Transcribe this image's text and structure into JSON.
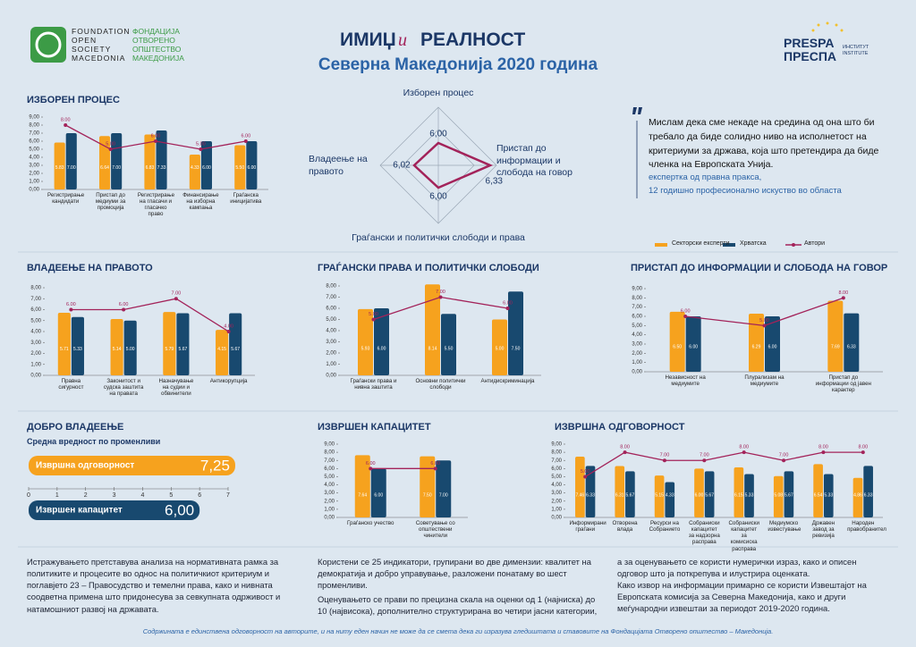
{
  "logo_left": {
    "en": [
      "FOUNDATION",
      "OPEN",
      "SOCIETY",
      "MACEDONIA"
    ],
    "mk": [
      "ФОНДАЦИЈА",
      "ОТВОРЕНО",
      "ОПШТЕСТВО",
      "МАКЕДОНИЈА"
    ]
  },
  "header": {
    "title_a": "ИМИЏ",
    "title_and": "и",
    "title_b": "РЕАЛНОСТ",
    "subtitle": "Северна Македонија 2020 година"
  },
  "logo_right": {
    "en": "PRESPA",
    "mk": "ПРЕСПА",
    "inst_mk": "ИНСТИТУТ",
    "inst_en": "INSTITUTE"
  },
  "quote": {
    "text": "Мислам дека сме некаде на средина од она што би требало да биде солидно ниво на исполнетост на критериуми за држава, која што претендира да биде членка на Европската Унија.",
    "author": "експертка од правна пракса,",
    "author_detail": "12 годишно професионално искуство во областа"
  },
  "legend": {
    "items": [
      "Секторски експерти",
      "Хрватска",
      "Автори"
    ]
  },
  "chart_data": [
    {
      "type": "combo",
      "title": "ИЗБОРЕН ПРОЦЕС",
      "categories": [
        "Регистрирање кандидати",
        "Пристап до медиуми за промоција",
        "Регистрирање на гласачи и гласачко право",
        "Финансирање на изборна кампања",
        "Граѓанска иницијатива"
      ],
      "series": [
        {
          "kind": "bar",
          "color": "#f6a21e",
          "values": [
            5.83,
            6.64,
            6.83,
            4.33,
            5.5
          ],
          "value_labels": [
            "5.83",
            "6.64",
            "6.83",
            "4.33",
            "5.50"
          ]
        },
        {
          "kind": "bar",
          "color": "#18496f",
          "values": [
            7,
            7,
            7.33,
            6,
            6
          ],
          "value_labels": [
            "7.00",
            "7.00",
            "7.33",
            "6.00",
            "6.00"
          ]
        },
        {
          "kind": "line",
          "color": "#a3235a",
          "values": [
            8,
            5,
            6,
            5,
            6
          ],
          "value_labels": [
            "8.00",
            "5.00",
            "6.00",
            "5.00",
            "6.00"
          ]
        }
      ],
      "ylim": [
        0,
        9
      ],
      "yticks": [
        {
          "value": 0,
          "label": "0,00"
        },
        {
          "value": 1,
          "label": "1,00"
        },
        {
          "value": 2,
          "label": "2,00"
        },
        {
          "value": 3,
          "label": "3,00"
        },
        {
          "value": 4,
          "label": "4,00"
        },
        {
          "value": 5,
          "label": "5,00"
        },
        {
          "value": 6,
          "label": "6,00"
        },
        {
          "value": 7,
          "label": "7,00"
        },
        {
          "value": 8,
          "label": "8,00"
        },
        {
          "value": 9,
          "label": "9,00"
        }
      ]
    },
    {
      "type": "radar",
      "categories": [
        "Изборен процес",
        "Пристап до информации и слобода на говор",
        "Граѓански и политички слободи и права",
        "Владеење на правото"
      ],
      "values": [
        6,
        6.33,
        6,
        6.02
      ],
      "value_labels": [
        "6,00",
        "6,33",
        "6,00",
        "6,02"
      ],
      "color": "#a3235a",
      "rlim": [
        5.75,
        6.4
      ],
      "rticks": [
        6.15,
        6.4
      ]
    },
    {
      "type": "combo",
      "title": "ВЛАДЕЕЊЕ НА ПРАВОТО",
      "categories": [
        "Правна сигурност",
        "Законитост и судска заштита на правата",
        "Назначување на судии и обвинители",
        "Антикорупција"
      ],
      "series": [
        {
          "kind": "bar",
          "color": "#f6a21e",
          "values": [
            5.71,
            5.14,
            5.79,
            4.15
          ],
          "value_labels": [
            "5.71",
            "5.14",
            "5.79",
            "4.15"
          ]
        },
        {
          "kind": "bar",
          "color": "#18496f",
          "values": [
            5.33,
            5,
            5.67,
            5.67
          ],
          "value_labels": [
            "5.33",
            "5.00",
            "5.67",
            "5.67"
          ]
        },
        {
          "kind": "line",
          "color": "#a3235a",
          "values": [
            6,
            6,
            7,
            4
          ],
          "value_labels": [
            "6.00",
            "6.00",
            "7.00",
            "4.00"
          ]
        }
      ],
      "ylim": [
        0,
        8
      ],
      "yticks": [
        {
          "value": 0,
          "label": "0,00"
        },
        {
          "value": 1,
          "label": "1,00"
        },
        {
          "value": 2,
          "label": "2,00"
        },
        {
          "value": 3,
          "label": "3,00"
        },
        {
          "value": 4,
          "label": "4,00"
        },
        {
          "value": 5,
          "label": "5,00"
        },
        {
          "value": 6,
          "label": "6,00"
        },
        {
          "value": 7,
          "label": "7,00"
        },
        {
          "value": 8,
          "label": "8,00"
        }
      ]
    },
    {
      "type": "combo",
      "title": "ГРАЃАНСКИ ПРАВА И ПОЛИТИЧКИ СЛОБОДИ",
      "categories": [
        "Граѓански права и нивна заштита",
        "Основни политички слободи",
        "Антидискриминација"
      ],
      "series": [
        {
          "kind": "bar",
          "color": "#f6a21e",
          "values": [
            5.93,
            8.14,
            5
          ],
          "value_labels": [
            "5.93",
            "8.14",
            "5.00"
          ]
        },
        {
          "kind": "bar",
          "color": "#18496f",
          "values": [
            6,
            5.5,
            7.5
          ],
          "value_labels": [
            "6.00",
            "5.50",
            "7.50"
          ]
        },
        {
          "kind": "line",
          "color": "#a3235a",
          "values": [
            5,
            7,
            6
          ],
          "value_labels": [
            "5.00",
            "7.00",
            "6.00"
          ]
        }
      ],
      "ylim": [
        0,
        8
      ],
      "yticks": [
        {
          "value": 0,
          "label": "0,00"
        },
        {
          "value": 1,
          "label": "1,00"
        },
        {
          "value": 2,
          "label": "2,00"
        },
        {
          "value": 3,
          "label": "3,00"
        },
        {
          "value": 4,
          "label": "4,00"
        },
        {
          "value": 5,
          "label": "5,00"
        },
        {
          "value": 6,
          "label": "6,00"
        },
        {
          "value": 7,
          "label": "7,00"
        },
        {
          "value": 8,
          "label": "8,00"
        }
      ]
    },
    {
      "type": "combo",
      "title": "ПРИСТАП ДО ИНФОРМАЦИИ И СЛОБОДА НА ГОВОР",
      "categories": [
        "Независност на медиумите",
        "Плурализам на медиумите",
        "Пристап до информации од јавен карактер"
      ],
      "series": [
        {
          "kind": "bar",
          "color": "#f6a21e",
          "values": [
            6.5,
            6.29,
            7.69
          ],
          "value_labels": [
            "6.50",
            "6.29",
            "7.69"
          ]
        },
        {
          "kind": "bar",
          "color": "#18496f",
          "values": [
            6,
            6,
            6.33
          ],
          "value_labels": [
            "6.00",
            "6.00",
            "6.33"
          ]
        },
        {
          "kind": "line",
          "color": "#a3235a",
          "values": [
            6,
            5,
            8
          ],
          "value_labels": [
            "6.00",
            "5.00",
            "8.00"
          ]
        }
      ],
      "ylim": [
        0,
        9
      ],
      "yticks": [
        {
          "value": 0,
          "label": "0,00"
        },
        {
          "value": 1,
          "label": "1,00"
        },
        {
          "value": 2,
          "label": "2,00"
        },
        {
          "value": 3,
          "label": "3,00"
        },
        {
          "value": 4,
          "label": "4,00"
        },
        {
          "value": 5,
          "label": "5,00"
        },
        {
          "value": 6,
          "label": "6,00"
        },
        {
          "value": 7,
          "label": "7,00"
        },
        {
          "value": 8,
          "label": "8,00"
        },
        {
          "value": 9,
          "label": "9,00"
        }
      ]
    },
    {
      "type": "hbar",
      "title": "ДОБРО ВЛАДЕЕЊЕ",
      "subtitle": "Средна вредност по променливи",
      "categories": [
        "Извршна одговорност",
        "Извршен капацитет"
      ],
      "values": [
        7.25,
        6
      ],
      "value_labels": [
        "7,25",
        "6,00"
      ],
      "colors": [
        "#f6a21e",
        "#18496f"
      ],
      "xlim": [
        0,
        7
      ],
      "xticks": [
        0,
        1,
        2,
        3,
        4,
        5,
        6,
        7
      ]
    },
    {
      "type": "combo",
      "title": "ИЗВРШЕН КАПАЦИТЕТ",
      "categories": [
        "Граѓанско учество",
        "Советување со општествени чинители"
      ],
      "series": [
        {
          "kind": "bar",
          "color": "#f6a21e",
          "values": [
            7.64,
            7.5
          ],
          "value_labels": [
            "7.64",
            "7.50"
          ]
        },
        {
          "kind": "bar",
          "color": "#18496f",
          "values": [
            6,
            7
          ],
          "value_labels": [
            "6.00",
            "7.00"
          ]
        },
        {
          "kind": "line",
          "color": "#a3235a",
          "values": [
            6,
            6
          ],
          "value_labels": [
            "6.00",
            "6.00"
          ]
        }
      ],
      "ylim": [
        0,
        9
      ],
      "yticks": [
        {
          "value": 0,
          "label": "0,00"
        },
        {
          "value": 1,
          "label": "1,00"
        },
        {
          "value": 2,
          "label": "2,00"
        },
        {
          "value": 3,
          "label": "3,00"
        },
        {
          "value": 4,
          "label": "4,00"
        },
        {
          "value": 5,
          "label": "5,00"
        },
        {
          "value": 6,
          "label": "6,00"
        },
        {
          "value": 7,
          "label": "7,00"
        },
        {
          "value": 8,
          "label": "8,00"
        },
        {
          "value": 9,
          "label": "9,00"
        }
      ]
    },
    {
      "type": "combo",
      "title": "ИЗВРШНА ОДГОВОРНОСТ",
      "categories": [
        "Информирани граѓани",
        "Отворена влада",
        "Ресурси на Собранието",
        "Собраниски капацитет за надзорна расправа",
        "Собраниски капацитет за комисиска расправа",
        "Медиумско известување",
        "Државен завод за ревизија",
        "Народен правобранител"
      ],
      "series": [
        {
          "kind": "bar",
          "color": "#f6a21e",
          "values": [
            7.46,
            6.31,
            5.15,
            6,
            6.15,
            5.08,
            6.54,
            4.86
          ],
          "value_labels": [
            "7.46",
            "6.31",
            "5.15",
            "6.00",
            "6.15",
            "5.08",
            "6.54",
            "4.86"
          ]
        },
        {
          "kind": "bar",
          "color": "#18496f",
          "values": [
            6.33,
            5.67,
            4.33,
            5.67,
            5.33,
            5.67,
            5.33,
            6.33
          ],
          "value_labels": [
            "6.33",
            "5.67",
            "4.33",
            "5.67",
            "5.33",
            "5.67",
            "5.33",
            "6.33"
          ]
        },
        {
          "kind": "line",
          "color": "#a3235a",
          "values": [
            5,
            8,
            7,
            7,
            8,
            7,
            8,
            8
          ],
          "value_labels": [
            "5.00",
            "8.00",
            "7.00",
            "7.00",
            "8.00",
            "7.00",
            "8.00",
            "8.00"
          ]
        }
      ],
      "ylim": [
        0,
        9
      ],
      "yticks": [
        {
          "value": 0,
          "label": "0,00"
        },
        {
          "value": 1,
          "label": "1,00"
        },
        {
          "value": 2,
          "label": "2,00"
        },
        {
          "value": 3,
          "label": "3,00"
        },
        {
          "value": 4,
          "label": "4,00"
        },
        {
          "value": 5,
          "label": "5,00"
        },
        {
          "value": 6,
          "label": "6,00"
        },
        {
          "value": 7,
          "label": "7,00"
        },
        {
          "value": 8,
          "label": "8,00"
        },
        {
          "value": 9,
          "label": "9,00"
        }
      ]
    }
  ],
  "footer": {
    "col1": "Истражувањето претставува анализа на нормативната рамка за политиките и процесите во однос на политичкиот критериум и поглавјето 23 – Правосудство и темелни права, како и нивната соодветна примена што придонесува за севкупната одрживост и натамошниот развој на државата.",
    "col2a": "Користени се 25 индикатори, групирани во две димензии: квалитет на демократија и добро управување, разложени понатаму во шест променливи.",
    "col2b": "Оценувањето се прави по прецизна скала на оценки од 1 (најниска) до 10 (највисока), дополнително структурирана во четири јасни категории,",
    "col3a": "а за оценувањето се користи нумерички израз, како и описен одговор што ја поткрепува и илустрира оценката.",
    "col3b": "Како извор на информации примарно се користи Извештајот на Европската комисија за Северна Македонија, како и други меѓународни извештаи за периодот 2019-2020 година.",
    "note": "Содржината е единствена одговорност на авторите, и на ниту еден начин не може да се смета дека ги изразува гледиштата и ставовите на Фондацијата Отворено општество – Македонија."
  }
}
